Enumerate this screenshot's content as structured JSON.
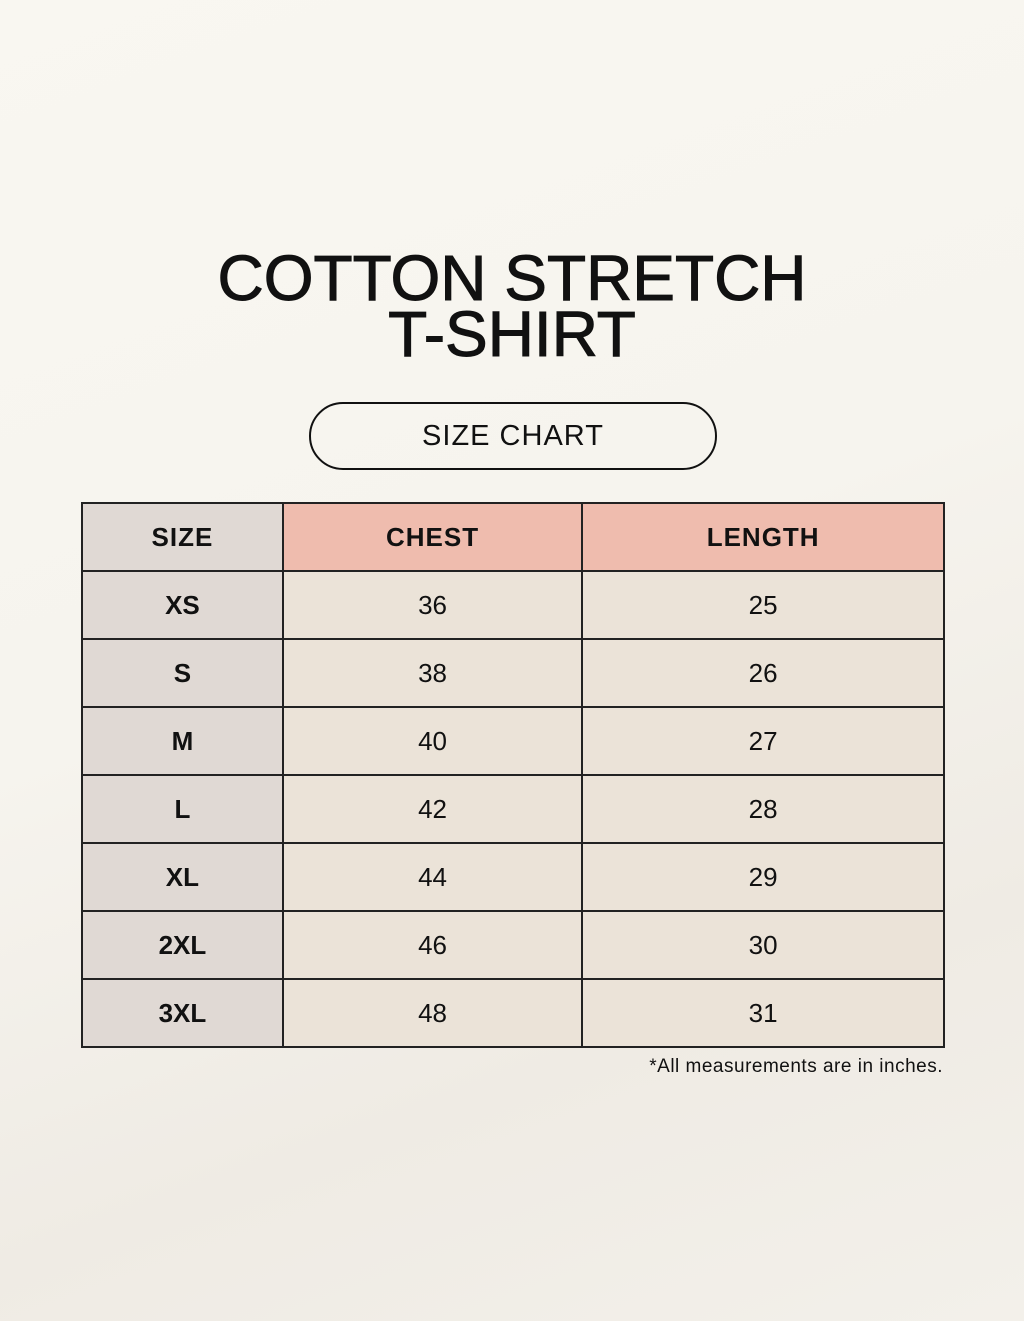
{
  "title": {
    "line1": "COTTON STRETCH",
    "line2": "T-SHIRT"
  },
  "subtitle": "SIZE CHART",
  "table": {
    "headers": [
      "SIZE",
      "CHEST",
      "LENGTH"
    ],
    "rows": [
      [
        "XS",
        "36",
        "25"
      ],
      [
        "S",
        "38",
        "26"
      ],
      [
        "M",
        "40",
        "27"
      ],
      [
        "L",
        "42",
        "28"
      ],
      [
        "XL",
        "44",
        "29"
      ],
      [
        "2XL",
        "46",
        "30"
      ],
      [
        "3XL",
        "48",
        "31"
      ]
    ]
  },
  "note": "*All measurements are in inches.",
  "colors": {
    "header_accent": "#efbcae",
    "size_column": "#e0d9d4",
    "cell": "#ebe3d8"
  }
}
